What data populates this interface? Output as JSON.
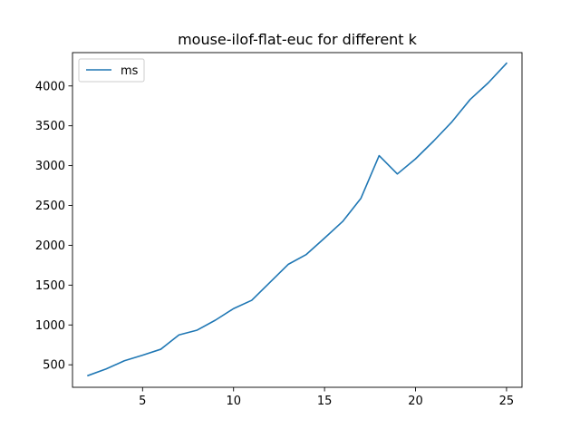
{
  "chart_data": {
    "type": "line",
    "title": "mouse-ilof-flat-euc for different k",
    "xlabel": "",
    "ylabel": "",
    "xlim": [
      1.15,
      25.85
    ],
    "ylim": [
      217.5,
      4418.5
    ],
    "xticks": [
      5,
      10,
      15,
      20,
      25
    ],
    "yticks": [
      500,
      1000,
      1500,
      2000,
      2500,
      3000,
      3500,
      4000
    ],
    "grid": false,
    "legend": "top-left",
    "series": [
      {
        "name": "ms",
        "color": "#1f77b4",
        "x": [
          2,
          3,
          4,
          5,
          6,
          7,
          8,
          9,
          10,
          11,
          12,
          13,
          14,
          15,
          16,
          17,
          18,
          19,
          20,
          21,
          22,
          23,
          24,
          25
        ],
        "y": [
          365,
          448,
          550,
          620,
          695,
          875,
          935,
          1060,
          1205,
          1310,
          1535,
          1760,
          1885,
          2090,
          2300,
          2590,
          3125,
          2895,
          3085,
          3310,
          3550,
          3830,
          4040,
          4285
        ]
      }
    ]
  }
}
